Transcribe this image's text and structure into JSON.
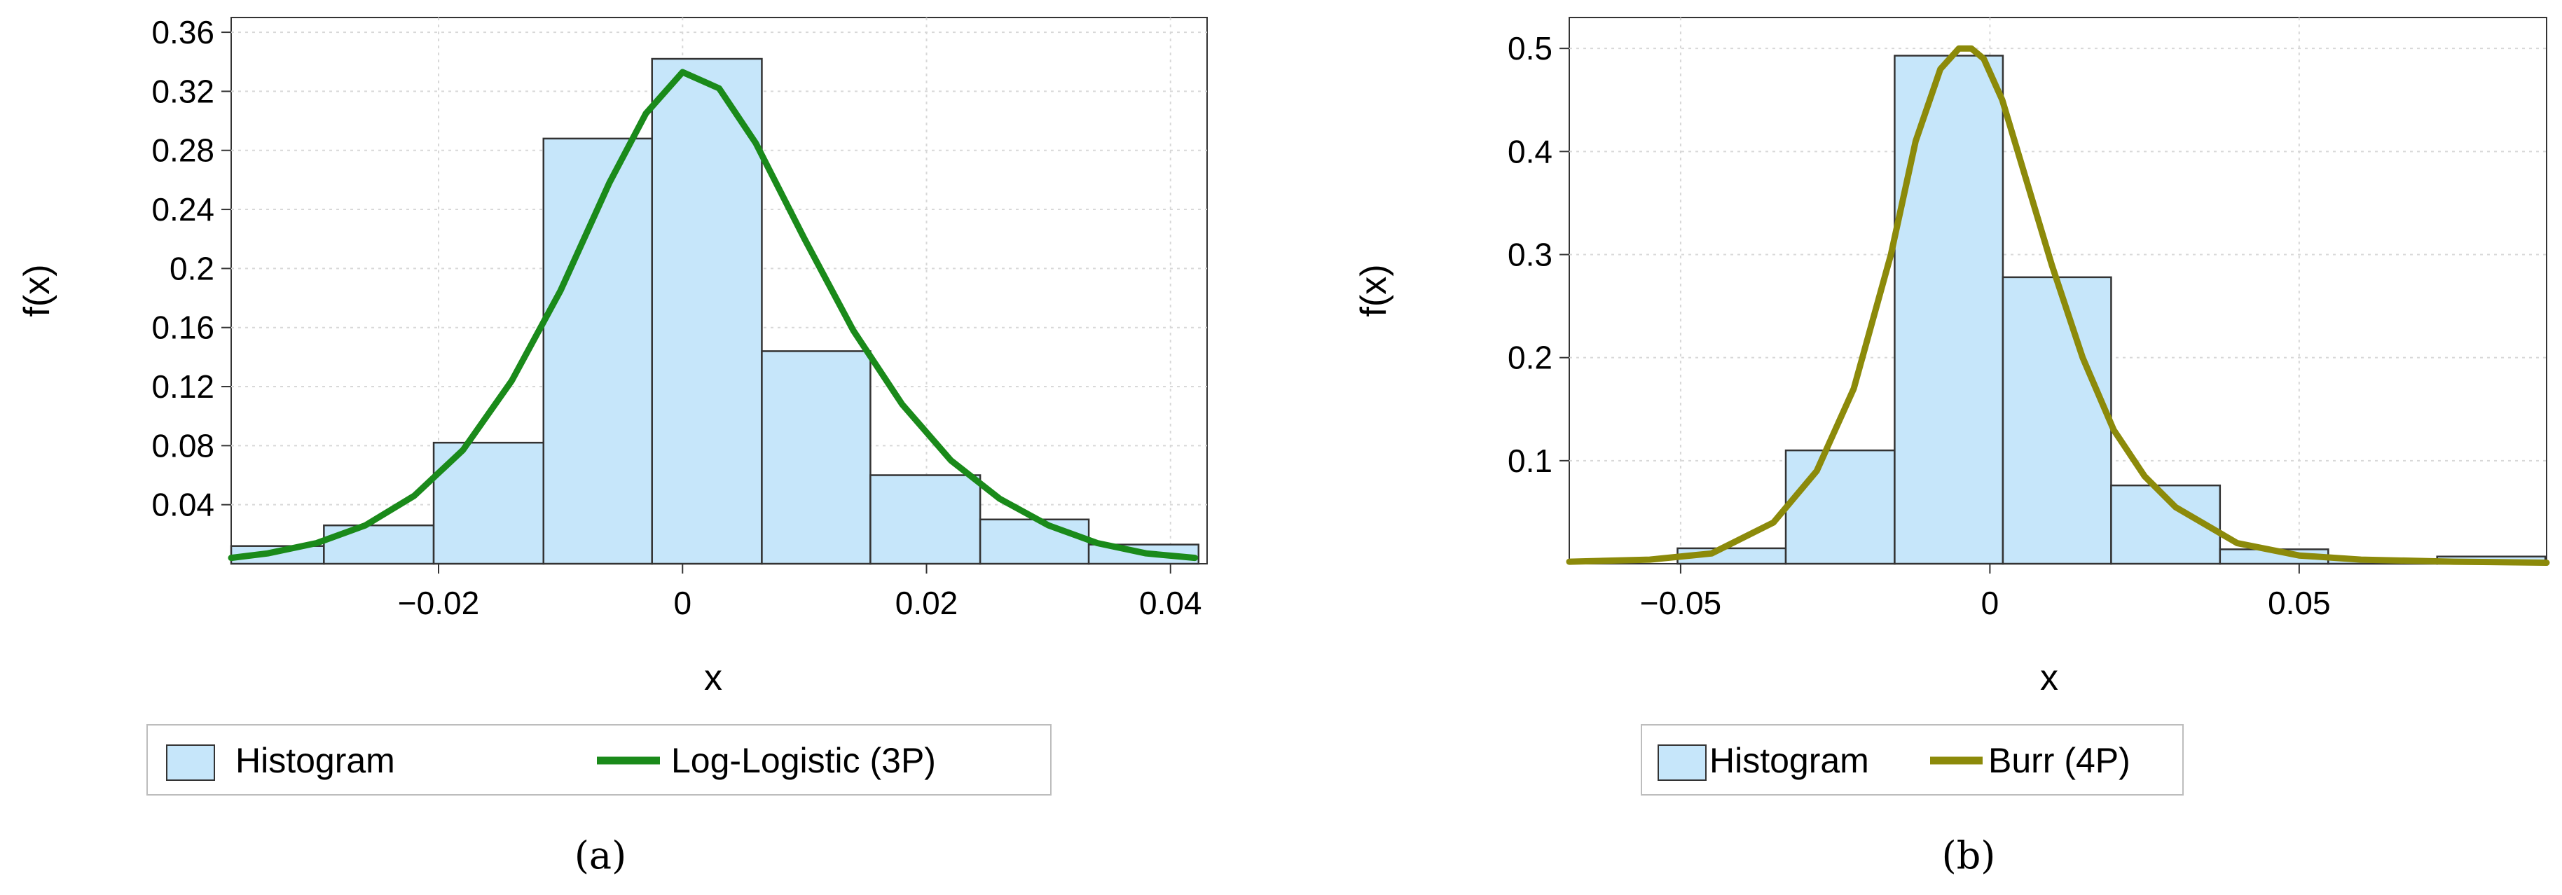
{
  "chart_data": [
    {
      "type": "bar",
      "panel": "(a)",
      "xlabel": "x",
      "ylabel": "f(x)",
      "xlim": [
        -0.037,
        0.043
      ],
      "ylim": [
        0,
        0.37
      ],
      "x_ticks": [
        {
          "v": -0.02,
          "label": "−0.02"
        },
        {
          "v": 0,
          "label": "0"
        },
        {
          "v": 0.02,
          "label": "0.02"
        },
        {
          "v": 0.04,
          "label": "0.04"
        }
      ],
      "y_ticks": [
        {
          "v": 0.04,
          "label": "0.04"
        },
        {
          "v": 0.08,
          "label": "0.08"
        },
        {
          "v": 0.12,
          "label": "0.12"
        },
        {
          "v": 0.16,
          "label": "0.16"
        },
        {
          "v": 0.2,
          "label": "0.2"
        },
        {
          "v": 0.24,
          "label": "0.24"
        },
        {
          "v": 0.28,
          "label": "0.28"
        },
        {
          "v": 0.32,
          "label": "0.32"
        },
        {
          "v": 0.36,
          "label": "0.36"
        }
      ],
      "histogram": {
        "name": "Histogram",
        "color": "#c6e6fa",
        "edges": [
          -0.0383,
          -0.0294,
          -0.0204,
          -0.0114,
          -0.0025,
          0.0065,
          0.0154,
          0.0244,
          0.0333,
          0.0423
        ],
        "values": [
          0.012,
          0.026,
          0.082,
          0.288,
          0.342,
          0.144,
          0.06,
          0.03,
          0.013
        ]
      },
      "curve": {
        "name": "Log-Logistic (3P)",
        "color": "#1a8a1a",
        "x": [
          -0.037,
          -0.034,
          -0.03,
          -0.026,
          -0.022,
          -0.018,
          -0.014,
          -0.01,
          -0.006,
          -0.003,
          0.0,
          0.003,
          0.006,
          0.01,
          0.014,
          0.018,
          0.022,
          0.026,
          0.03,
          0.034,
          0.038,
          0.042
        ],
        "y": [
          0.004,
          0.007,
          0.014,
          0.026,
          0.046,
          0.077,
          0.124,
          0.185,
          0.258,
          0.305,
          0.333,
          0.322,
          0.285,
          0.22,
          0.158,
          0.108,
          0.07,
          0.044,
          0.026,
          0.014,
          0.007,
          0.004
        ]
      },
      "legend": [
        "Histogram",
        "Log-Logistic (3P)"
      ]
    },
    {
      "type": "bar",
      "panel": "(b)",
      "xlabel": "x",
      "ylabel": "f(x)",
      "xlim": [
        -0.068,
        0.09
      ],
      "ylim": [
        0,
        0.53
      ],
      "x_ticks": [
        {
          "v": -0.05,
          "label": "−0.05"
        },
        {
          "v": 0,
          "label": "0"
        },
        {
          "v": 0.05,
          "label": "0.05"
        }
      ],
      "y_ticks": [
        {
          "v": 0.1,
          "label": "0.1"
        },
        {
          "v": 0.2,
          "label": "0.2"
        },
        {
          "v": 0.3,
          "label": "0.3"
        },
        {
          "v": 0.4,
          "label": "0.4"
        },
        {
          "v": 0.5,
          "label": "0.5"
        }
      ],
      "histogram": {
        "name": "Histogram",
        "color": "#c6e6fa",
        "edges": [
          -0.0505,
          -0.033,
          -0.0154,
          0.0021,
          0.0196,
          0.0372,
          0.0547,
          0.0723,
          0.0898
        ],
        "values": [
          0.015,
          0.11,
          0.493,
          0.278,
          0.076,
          0.014,
          0.004,
          0.007
        ]
      },
      "curve": {
        "name": "Burr (4P)",
        "color": "#8c8a0a",
        "x": [
          -0.068,
          -0.055,
          -0.045,
          -0.035,
          -0.028,
          -0.022,
          -0.016,
          -0.012,
          -0.008,
          -0.005,
          -0.003,
          -0.001,
          0.002,
          0.006,
          0.01,
          0.015,
          0.02,
          0.025,
          0.03,
          0.04,
          0.05,
          0.06,
          0.075,
          0.09
        ],
        "y": [
          0.002,
          0.004,
          0.01,
          0.04,
          0.09,
          0.17,
          0.3,
          0.41,
          0.48,
          0.5,
          0.5,
          0.49,
          0.45,
          0.37,
          0.29,
          0.2,
          0.13,
          0.085,
          0.055,
          0.02,
          0.008,
          0.004,
          0.002,
          0.001
        ]
      },
      "legend": [
        "Histogram",
        "Burr (4P)"
      ]
    }
  ],
  "captions": [
    "(a)",
    "(b)"
  ]
}
